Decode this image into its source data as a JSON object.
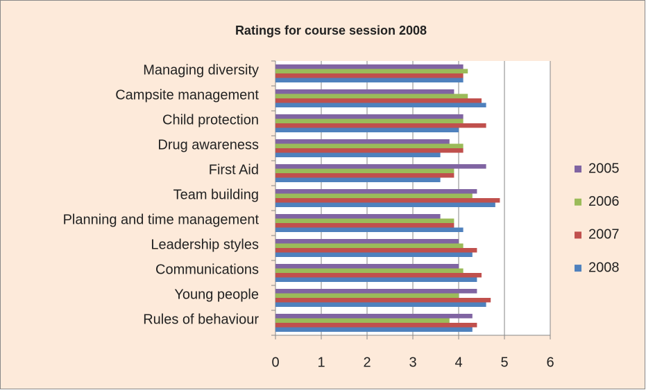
{
  "chart_data": {
    "type": "barh",
    "title": "Ratings for course session 2008",
    "categories": [
      "Managing diversity",
      "Campsite management",
      "Child protection",
      "Drug awareness",
      "First Aid",
      "Team building",
      "Planning and time management",
      "Leadership styles",
      "Communications",
      "Young people",
      "Rules of behaviour"
    ],
    "series": [
      {
        "name": "2005",
        "color": "#8064a2",
        "values": [
          4.1,
          3.9,
          4.1,
          3.8,
          4.6,
          4.4,
          3.6,
          4.0,
          4.0,
          4.4,
          4.3
        ]
      },
      {
        "name": "2006",
        "color": "#9bbb59",
        "values": [
          4.2,
          4.2,
          4.1,
          4.1,
          3.9,
          4.3,
          3.9,
          4.1,
          4.1,
          4.0,
          3.8
        ]
      },
      {
        "name": "2007",
        "color": "#c0504d",
        "values": [
          4.1,
          4.5,
          4.6,
          4.1,
          3.9,
          4.9,
          3.9,
          4.4,
          4.5,
          4.7,
          4.4
        ]
      },
      {
        "name": "2008",
        "color": "#4f81bd",
        "values": [
          4.1,
          4.6,
          4.0,
          3.6,
          3.6,
          4.8,
          4.1,
          4.3,
          4.4,
          4.6,
          4.3
        ]
      }
    ],
    "xlim": [
      0,
      6
    ],
    "xticks": [
      0,
      1,
      2,
      3,
      4,
      5,
      6
    ],
    "grid": true,
    "legend": "right"
  }
}
